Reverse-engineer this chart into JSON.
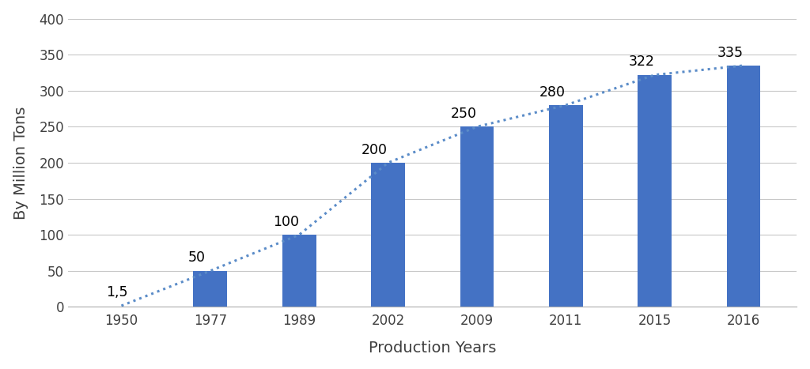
{
  "categories": [
    "1950",
    "1977",
    "1989",
    "2002",
    "2009",
    "2011",
    "2015",
    "2016"
  ],
  "values": [
    1.5,
    50,
    100,
    200,
    250,
    280,
    322,
    335
  ],
  "bar_indices": [
    1,
    2,
    3,
    4,
    5,
    6,
    7
  ],
  "bar_values": [
    50,
    100,
    200,
    250,
    280,
    322,
    335
  ],
  "bar_color": "#4472C4",
  "line_color": "#5B8CC8",
  "ylabel": "By Million Tons",
  "xlabel": "Production Years",
  "ylim": [
    0,
    400
  ],
  "yticks": [
    0,
    50,
    100,
    150,
    200,
    250,
    300,
    350,
    400
  ],
  "bar_width": 0.38,
  "label_fontsize": 12.5,
  "axis_label_fontsize": 14,
  "tick_fontsize": 12,
  "background_color": "#ffffff",
  "grid_color": "#c8c8c8",
  "annotation_labels": [
    "1,5",
    "50",
    "100",
    "200",
    "250",
    "280",
    "322",
    "335"
  ],
  "figsize": [
    10.24,
    4.67
  ]
}
